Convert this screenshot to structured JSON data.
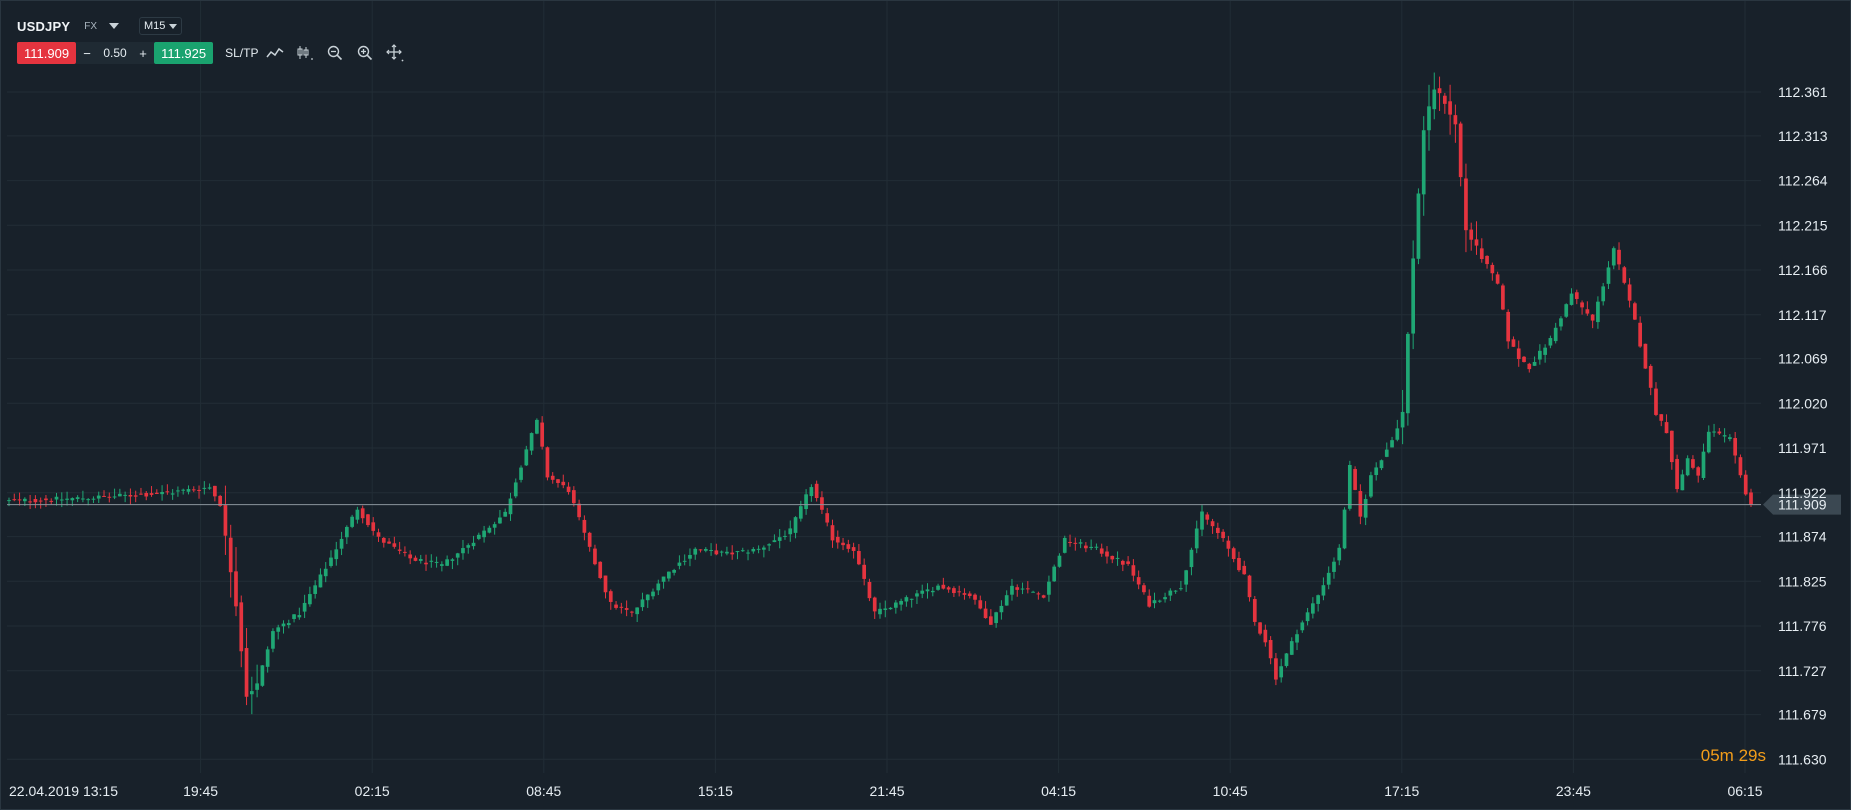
{
  "header": {
    "symbol": "USDJPY",
    "market_type": "FX",
    "timeframe": "M15"
  },
  "trade": {
    "sell_price": "111.909",
    "minus": "−",
    "quantity": "0.50",
    "plus": "+",
    "buy_price": "111.925",
    "sltp_label": "SL/TP"
  },
  "toolbar": {
    "icons": [
      "line-chart-icon",
      "candlestick-type-icon",
      "zoom-out-icon",
      "zoom-in-icon",
      "crosshair-move-icon"
    ]
  },
  "timer": {
    "minutes": "05",
    "minutes_unit": "m",
    "seconds": "29",
    "seconds_unit": "s"
  },
  "colors": {
    "background": "#18212a",
    "grid": "#222d36",
    "up": "#1fa774",
    "down": "#e5343f",
    "current_price_line": "#8a959d",
    "current_price_tag": "#3b4852",
    "timer": "#f29d1a"
  },
  "chart_data": {
    "type": "candlestick",
    "symbol": "USDJPY",
    "timeframe": "M15",
    "current_price": 111.909,
    "ylim": [
      111.615,
      112.395
    ],
    "y_ticks": [
      "112.361",
      "112.313",
      "112.264",
      "112.215",
      "112.166",
      "112.117",
      "112.069",
      "112.020",
      "111.971",
      "111.922",
      "111.874",
      "111.825",
      "111.776",
      "111.727",
      "111.679",
      "111.630"
    ],
    "x_ticks": [
      "22.04.2019 13:15",
      "19:45",
      "02:15",
      "08:45",
      "15:15",
      "21:45",
      "04:15",
      "10:45",
      "17:15",
      "23:45",
      "06:15"
    ],
    "keypoints": [
      [
        0,
        111.913
      ],
      [
        10,
        111.915
      ],
      [
        20,
        111.918
      ],
      [
        30,
        111.922
      ],
      [
        38,
        111.928
      ],
      [
        40,
        111.91
      ],
      [
        43,
        111.8
      ],
      [
        45,
        111.7
      ],
      [
        47,
        111.712
      ],
      [
        50,
        111.77
      ],
      [
        55,
        111.79
      ],
      [
        60,
        111.84
      ],
      [
        66,
        111.905
      ],
      [
        70,
        111.872
      ],
      [
        76,
        111.85
      ],
      [
        82,
        111.842
      ],
      [
        88,
        111.87
      ],
      [
        94,
        111.9
      ],
      [
        98,
        111.97
      ],
      [
        100,
        112.0
      ],
      [
        102,
        111.94
      ],
      [
        106,
        111.925
      ],
      [
        110,
        111.86
      ],
      [
        114,
        111.8
      ],
      [
        118,
        111.79
      ],
      [
        124,
        111.83
      ],
      [
        130,
        111.86
      ],
      [
        136,
        111.855
      ],
      [
        142,
        111.86
      ],
      [
        148,
        111.88
      ],
      [
        152,
        111.93
      ],
      [
        156,
        111.872
      ],
      [
        160,
        111.86
      ],
      [
        164,
        111.79
      ],
      [
        170,
        111.805
      ],
      [
        176,
        111.82
      ],
      [
        182,
        111.81
      ],
      [
        186,
        111.78
      ],
      [
        190,
        111.82
      ],
      [
        196,
        111.81
      ],
      [
        200,
        111.87
      ],
      [
        206,
        111.86
      ],
      [
        212,
        111.842
      ],
      [
        216,
        111.8
      ],
      [
        222,
        111.82
      ],
      [
        226,
        111.9
      ],
      [
        230,
        111.87
      ],
      [
        234,
        111.83
      ],
      [
        236,
        111.78
      ],
      [
        238,
        111.76
      ],
      [
        240,
        111.72
      ],
      [
        244,
        111.77
      ],
      [
        248,
        111.81
      ],
      [
        252,
        111.86
      ],
      [
        254,
        111.95
      ],
      [
        256,
        111.895
      ],
      [
        258,
        111.94
      ],
      [
        262,
        111.98
      ],
      [
        264,
        112.01
      ],
      [
        266,
        112.18
      ],
      [
        268,
        112.32
      ],
      [
        270,
        112.365
      ],
      [
        272,
        112.35
      ],
      [
        274,
        112.325
      ],
      [
        276,
        112.21
      ],
      [
        278,
        112.19
      ],
      [
        282,
        112.15
      ],
      [
        284,
        112.09
      ],
      [
        286,
        112.07
      ],
      [
        288,
        112.06
      ],
      [
        292,
        112.09
      ],
      [
        296,
        112.14
      ],
      [
        300,
        112.11
      ],
      [
        304,
        112.19
      ],
      [
        306,
        112.15
      ],
      [
        308,
        112.11
      ],
      [
        310,
        112.06
      ],
      [
        312,
        112.01
      ],
      [
        314,
        111.99
      ],
      [
        316,
        111.925
      ],
      [
        318,
        111.96
      ],
      [
        320,
        111.94
      ],
      [
        322,
        111.99
      ],
      [
        326,
        111.98
      ],
      [
        328,
        111.94
      ],
      [
        330,
        111.905
      ]
    ]
  }
}
